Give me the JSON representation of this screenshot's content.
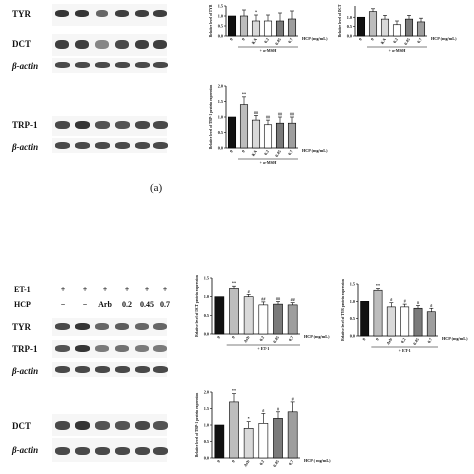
{
  "panel_a": {
    "label": "(a)",
    "blot_labels": [
      "TYR",
      "DCT",
      "β-actin",
      "TRP-1",
      "β-actin"
    ],
    "charts": [
      {
        "id": "a-tyr",
        "ylabel": "Relative level of TYR",
        "ticks": [
          "1.5",
          "1.0",
          "0.5",
          "0.0"
        ],
        "ylim": [
          0,
          1.5
        ],
        "cats": [
          "0",
          "0",
          "KA",
          "0.2",
          "0.45",
          "0.7"
        ],
        "values": [
          1.0,
          1.0,
          0.75,
          0.75,
          0.75,
          0.85
        ],
        "errors": [
          0,
          0.3,
          0.3,
          0.3,
          0.4,
          0.4
        ],
        "sig": [
          "",
          "",
          "*",
          "",
          "",
          ""
        ],
        "xnote": "HCP (mg/mL)",
        "treat": "+ α-MSH"
      },
      {
        "id": "a-dct",
        "ylabel": "Relative level of DCT",
        "ticks": [
          "1.0",
          "0.5",
          "0.0"
        ],
        "ylim": [
          0,
          1.6
        ],
        "cats": [
          "0",
          "0",
          "KA",
          "0.2",
          "0.45",
          "0.7"
        ],
        "values": [
          1.0,
          1.3,
          0.9,
          0.6,
          0.9,
          0.75
        ],
        "errors": [
          0,
          0.15,
          0.2,
          0.2,
          0.2,
          0.2
        ],
        "sig": [
          "",
          "",
          "",
          "",
          "",
          ""
        ],
        "xnote": "HCP (mg/mL)",
        "treat": "+ α-MSH"
      },
      {
        "id": "a-trp1",
        "ylabel": "Relative level of TRP-1 protein expression",
        "ticks": [
          "2.0",
          "1.5",
          "1.0",
          "0.5",
          "0.0"
        ],
        "ylim": [
          0,
          2.0
        ],
        "cats": [
          "0",
          "0",
          "KA",
          "0.2",
          "0.45",
          "0.7"
        ],
        "values": [
          1.0,
          1.4,
          0.9,
          0.75,
          0.8,
          0.8
        ],
        "errors": [
          0,
          0.25,
          0.15,
          0.15,
          0.2,
          0.2
        ],
        "sig": [
          "",
          "**",
          "##",
          "##",
          "##",
          "##"
        ],
        "xnote": "HCP (mg/mL)",
        "treat": "+ α-MSH"
      }
    ]
  },
  "panel_b": {
    "header_rows": [
      {
        "label": "ET-1",
        "marks": [
          "+",
          "+",
          "+",
          "+",
          "+",
          "+"
        ]
      },
      {
        "label": "HCP",
        "marks": [
          "−",
          "−",
          "Arb",
          "0.2",
          "0.45",
          "0.7"
        ]
      }
    ],
    "blot_labels": [
      "TYR",
      "TRP-1",
      "β-actin",
      "DCT",
      "β-actin"
    ],
    "charts": [
      {
        "id": "b-dct",
        "ylabel": "Relative level of DCT protein expression",
        "ticks": [
          "1.5",
          "1.0",
          "0.5",
          "0.0"
        ],
        "ylim": [
          0,
          1.5
        ],
        "cats": [
          "0",
          "0",
          "Arb",
          "0.2",
          "0.45",
          "0.7"
        ],
        "values": [
          1.0,
          1.22,
          1.0,
          0.78,
          0.8,
          0.78
        ],
        "errors": [
          0,
          0.06,
          0.06,
          0.08,
          0.07,
          0.06
        ],
        "sig": [
          "",
          "**",
          "#",
          "##",
          "##",
          "##"
        ],
        "xnote": "HCP (mg/mL)",
        "treat": "+ ET-1"
      },
      {
        "id": "b-tyr",
        "ylabel": "Relative level of TYR protein expression",
        "ticks": [
          "1.5",
          "1.0",
          "0.5",
          "0.0"
        ],
        "ylim": [
          0,
          1.5
        ],
        "cats": [
          "0",
          "0",
          "Arb",
          "0.2",
          "0.45",
          "0.7"
        ],
        "values": [
          1.0,
          1.32,
          0.84,
          0.84,
          0.8,
          0.7
        ],
        "errors": [
          0,
          0.05,
          0.12,
          0.08,
          0.08,
          0.1
        ],
        "sig": [
          "",
          "**",
          "#",
          "#",
          "#",
          "#"
        ],
        "xnote": "HCP (mg/mL)",
        "treat": "+ ET-1"
      },
      {
        "id": "b-trp1",
        "ylabel": "Relative level of TRP-1 protein expression",
        "ticks": [
          "2.0",
          "1.5",
          "1.0",
          "0.5",
          "0.0"
        ],
        "ylim": [
          0,
          2.0
        ],
        "cats": [
          "0",
          "0",
          "Arb",
          "0.2",
          "0.45",
          "0.7"
        ],
        "values": [
          1.0,
          1.7,
          0.9,
          1.05,
          1.2,
          1.4
        ],
        "errors": [
          0,
          0.25,
          0.2,
          0.3,
          0.2,
          0.3
        ],
        "sig": [
          "",
          "**",
          "*",
          "#",
          "#",
          "#"
        ],
        "xnote": "HCP ( mg/mL)",
        "treat": ""
      }
    ]
  },
  "colors": {
    "bar_fills": [
      "#111111",
      "#bdbdbd",
      "#d9d9d9",
      "#ffffff",
      "#7a7a7a",
      "#9e9e9e"
    ]
  }
}
